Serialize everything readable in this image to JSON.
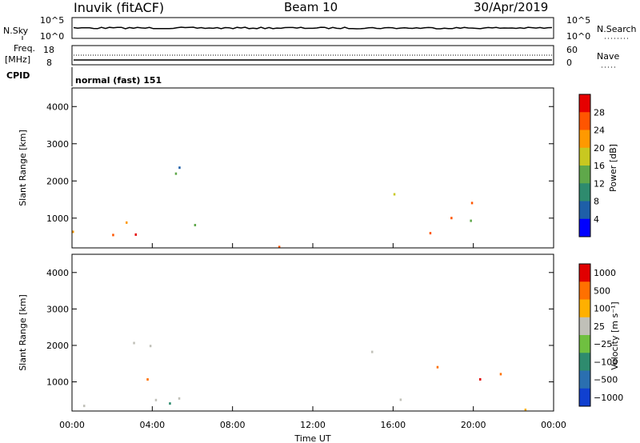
{
  "header": {
    "station": "Inuvik (fitACF)",
    "beam": "Beam 10",
    "date": "30/Apr/2019"
  },
  "top_panels": {
    "nsky_label": "N.Sky",
    "nsky_ticks": [
      "10^5",
      "10^0"
    ],
    "nsearch_label": "N.Search",
    "nsearch_ticks": [
      "10^5",
      "10^0"
    ],
    "freq_label": "Freq.",
    "freq_unit": "[MHz]",
    "freq_ticks": [
      "18",
      "8"
    ],
    "nave_label": "Nave",
    "nave_ticks": [
      "60",
      "0"
    ],
    "cpid_label": "CPID",
    "cpid_value": "normal (fast) 151"
  },
  "chart_data": [
    {
      "type": "heatmap",
      "name": "power",
      "ylabel": "Slant Range [km]",
      "yticks": [
        "1000",
        "2000",
        "3000",
        "4000"
      ],
      "ylim": [
        200,
        4500
      ],
      "xlim": [
        0,
        24
      ],
      "colorbar_label": "Power [dB]",
      "colorbar_ticks": [
        "4",
        "8",
        "12",
        "16",
        "20",
        "24",
        "28"
      ],
      "colors": [
        "#0000ff",
        "#1e5fa8",
        "#2e8b6e",
        "#5fa84a",
        "#c8c820",
        "#ff9900",
        "#ff5500",
        "#e60000"
      ]
    },
    {
      "type": "heatmap",
      "name": "velocity",
      "ylabel": "Slant Range [km]",
      "yticks": [
        "1000",
        "2000",
        "3000",
        "4000"
      ],
      "ylim": [
        200,
        4500
      ],
      "xlim": [
        0,
        24
      ],
      "xlabel": "Time UT",
      "xticks": [
        "00:00",
        "04:00",
        "08:00",
        "12:00",
        "16:00",
        "20:00",
        "00:00"
      ],
      "colorbar_label": "Velocity [m s⁻¹]",
      "colorbar_ticks": [
        "1000",
        "500",
        "100",
        "25",
        "−25",
        "−100",
        "−500",
        "−1000"
      ],
      "colors": [
        "#1040d0",
        "#2a6fb0",
        "#2e8b6e",
        "#6fc040",
        "#c0c0b8",
        "#ffb000",
        "#ff7000",
        "#e00000"
      ]
    }
  ]
}
